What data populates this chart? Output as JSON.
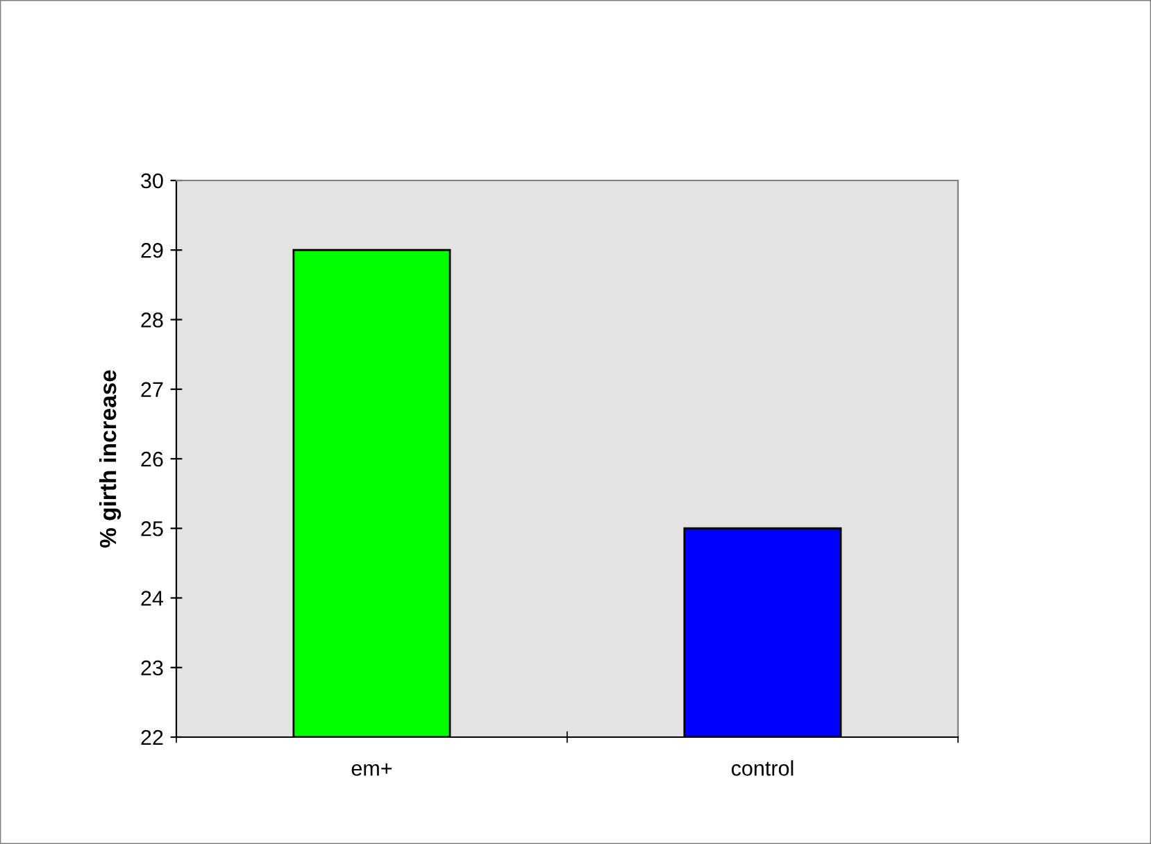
{
  "chart_data": {
    "type": "bar",
    "ylabel": "% girth increase",
    "categories": [
      "em+",
      "control"
    ],
    "values": [
      29,
      25
    ],
    "colors": [
      "#00ff00",
      "#0000ff"
    ],
    "ylim": [
      22,
      30
    ],
    "yticks": [
      22,
      23,
      24,
      25,
      26,
      27,
      28,
      29,
      30
    ],
    "grid": false,
    "legend": false
  }
}
